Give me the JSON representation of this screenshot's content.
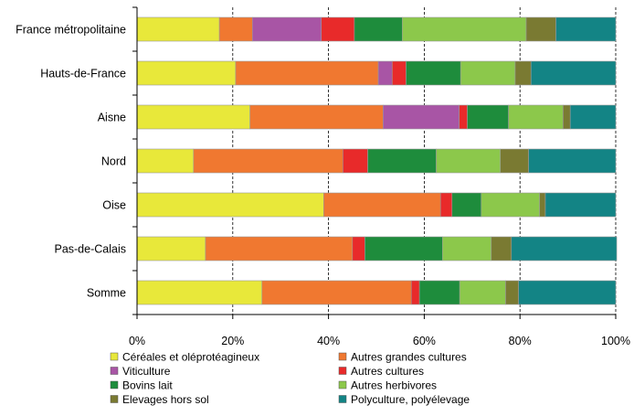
{
  "chart_data": {
    "type": "bar",
    "orientation": "horizontal",
    "stacked": "percent",
    "categories": [
      "France métropolitaine",
      "Hauts-de-France",
      "Aisne",
      "Nord",
      "Oise",
      "Pas-de-Calais",
      "Somme"
    ],
    "x_ticks": [
      "0%",
      "20%",
      "40%",
      "60%",
      "80%",
      "100%"
    ],
    "xlim": [
      0,
      100
    ],
    "grid": "vertical dashed",
    "legend_position": "bottom",
    "series": [
      {
        "name": "Céréales et oléprotéagineux",
        "color": "#e8e83a",
        "values": [
          17.2,
          20.6,
          23.6,
          11.8,
          39.0,
          14.3,
          26.1
        ]
      },
      {
        "name": "Autres grandes cultures",
        "color": "#f07830",
        "values": [
          6.9,
          29.8,
          27.8,
          31.2,
          24.4,
          30.7,
          31.2
        ]
      },
      {
        "name": "Viticulture",
        "color": "#a855a5",
        "values": [
          14.4,
          2.9,
          15.9,
          0.0,
          0.0,
          0.0,
          0.0
        ]
      },
      {
        "name": "Autres cultures",
        "color": "#e82a2a",
        "values": [
          6.9,
          2.9,
          1.7,
          5.2,
          2.4,
          2.6,
          1.7
        ]
      },
      {
        "name": "Bovins lait",
        "color": "#1e8c3c",
        "values": [
          10.0,
          11.4,
          8.6,
          14.3,
          6.1,
          16.2,
          8.4
        ]
      },
      {
        "name": "Autres herbivores",
        "color": "#8cc84b",
        "values": [
          25.9,
          11.4,
          11.4,
          13.4,
          12.2,
          10.2,
          9.6
        ]
      },
      {
        "name": "Elevages hors sol",
        "color": "#7a7a32",
        "values": [
          6.2,
          3.3,
          1.5,
          5.9,
          1.2,
          4.2,
          2.7
        ]
      },
      {
        "name": "Polyculture, polyélevage",
        "color": "#138485",
        "values": [
          12.5,
          17.7,
          9.5,
          18.2,
          14.7,
          22.0,
          20.3
        ]
      }
    ]
  }
}
